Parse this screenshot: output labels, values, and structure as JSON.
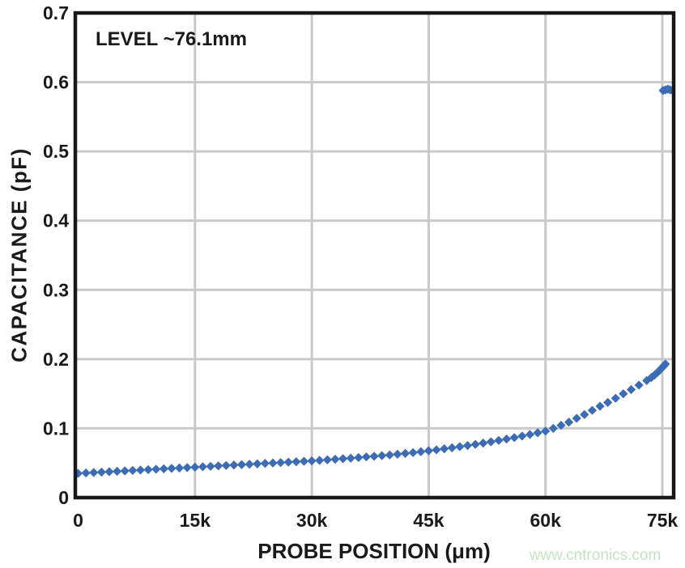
{
  "figure": {
    "annotation": "LEVEL ~76.1mm",
    "watermark": "www.cntronics.com"
  },
  "chart_data": {
    "type": "scatter",
    "title": "",
    "xlabel": "PROBE POSITION (μm)",
    "ylabel": "CAPACITANCE (pF)",
    "xlim": [
      0,
      76500
    ],
    "ylim": [
      0,
      0.7
    ],
    "grid": true,
    "legend": "none",
    "annotation": "LEVEL ~76.1mm",
    "marker": "diamond",
    "marker_color": "#3c6cb4",
    "grid_color": "#c9c9c9",
    "frame_color": "#181818",
    "x_ticks": [
      {
        "value": 0,
        "label": "0"
      },
      {
        "value": 15000,
        "label": "15k"
      },
      {
        "value": 30000,
        "label": "30k"
      },
      {
        "value": 45000,
        "label": "45k"
      },
      {
        "value": 60000,
        "label": "60k"
      },
      {
        "value": 75000,
        "label": "75k"
      }
    ],
    "y_ticks": [
      {
        "value": 0.0,
        "label": "0"
      },
      {
        "value": 0.1,
        "label": "0.1"
      },
      {
        "value": 0.2,
        "label": "0.2"
      },
      {
        "value": 0.3,
        "label": "0.3"
      },
      {
        "value": 0.4,
        "label": "0.4"
      },
      {
        "value": 0.5,
        "label": "0.5"
      },
      {
        "value": 0.6,
        "label": "0.6"
      },
      {
        "value": 0.7,
        "label": "0.7"
      }
    ],
    "series": [
      {
        "name": "capacitance-vs-probe-position",
        "points": [
          [
            0,
            0.035
          ],
          [
            1000,
            0.0356
          ],
          [
            2000,
            0.0362
          ],
          [
            3000,
            0.0368
          ],
          [
            4000,
            0.0374
          ],
          [
            5000,
            0.038
          ],
          [
            6000,
            0.0386
          ],
          [
            7000,
            0.0392
          ],
          [
            8000,
            0.0398
          ],
          [
            9000,
            0.0404
          ],
          [
            10000,
            0.041
          ],
          [
            11000,
            0.0416
          ],
          [
            12000,
            0.0422
          ],
          [
            13000,
            0.0428
          ],
          [
            14000,
            0.0434
          ],
          [
            15000,
            0.044
          ],
          [
            16000,
            0.0446
          ],
          [
            17000,
            0.0452
          ],
          [
            18000,
            0.0458
          ],
          [
            19000,
            0.0464
          ],
          [
            20000,
            0.047
          ],
          [
            21000,
            0.0476
          ],
          [
            22000,
            0.0482
          ],
          [
            23000,
            0.0488
          ],
          [
            24000,
            0.0494
          ],
          [
            25000,
            0.05
          ],
          [
            26000,
            0.0506
          ],
          [
            27000,
            0.0512
          ],
          [
            28000,
            0.0518
          ],
          [
            29000,
            0.0524
          ],
          [
            30000,
            0.053
          ],
          [
            31000,
            0.0538
          ],
          [
            32000,
            0.0546
          ],
          [
            33000,
            0.0554
          ],
          [
            34000,
            0.0562
          ],
          [
            35000,
            0.057
          ],
          [
            36000,
            0.0579
          ],
          [
            37000,
            0.0588
          ],
          [
            38000,
            0.0597
          ],
          [
            39000,
            0.0606
          ],
          [
            40000,
            0.0616
          ],
          [
            41000,
            0.0627
          ],
          [
            42000,
            0.0638
          ],
          [
            43000,
            0.065
          ],
          [
            44000,
            0.0663
          ],
          [
            45000,
            0.0676
          ],
          [
            46000,
            0.069
          ],
          [
            47000,
            0.0705
          ],
          [
            48000,
            0.072
          ],
          [
            49000,
            0.0736
          ],
          [
            50000,
            0.0752
          ],
          [
            51000,
            0.0769
          ],
          [
            52000,
            0.0787
          ],
          [
            53000,
            0.0806
          ],
          [
            54000,
            0.0826
          ],
          [
            55000,
            0.0846
          ],
          [
            56000,
            0.0867
          ],
          [
            57000,
            0.0889
          ],
          [
            58000,
            0.0912
          ],
          [
            59000,
            0.0936
          ],
          [
            60000,
            0.096
          ],
          [
            61000,
            0.1
          ],
          [
            62000,
            0.1045
          ],
          [
            63000,
            0.109
          ],
          [
            64000,
            0.1145
          ],
          [
            65000,
            0.12
          ],
          [
            66000,
            0.126
          ],
          [
            67000,
            0.132
          ],
          [
            68000,
            0.1375
          ],
          [
            69000,
            0.1435
          ],
          [
            70000,
            0.15
          ],
          [
            71000,
            0.156
          ],
          [
            72000,
            0.1625
          ],
          [
            73000,
            0.169
          ],
          [
            73600,
            0.1735
          ],
          [
            74000,
            0.177
          ],
          [
            74400,
            0.181
          ],
          [
            74700,
            0.1845
          ],
          [
            75000,
            0.188
          ],
          [
            75200,
            0.1905
          ],
          [
            75400,
            0.193
          ]
        ]
      },
      {
        "name": "level-contact-reading",
        "points": [
          [
            75100,
            0.588
          ],
          [
            75400,
            0.589
          ],
          [
            75700,
            0.59
          ],
          [
            76000,
            0.589
          ],
          [
            76300,
            0.588
          ]
        ]
      }
    ]
  }
}
